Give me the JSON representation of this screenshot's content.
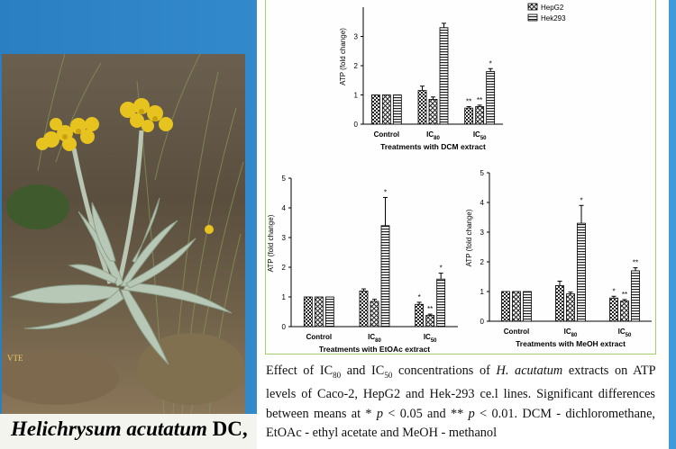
{
  "photo": {
    "credit": "VTE",
    "species": {
      "genus": "Helichrysum",
      "epithet": "acutatum",
      "author": "DC,"
    }
  },
  "chart_data": [
    {
      "type": "bar",
      "id": "dcm",
      "ylabel": "ATP (fold change)",
      "xlabel": "Treatments with DCM extract",
      "ylim": [
        0,
        4
      ],
      "yticks": [
        0,
        1,
        2,
        3
      ],
      "categories": [
        "Control",
        "IC80",
        "IC50"
      ],
      "series": [
        {
          "name": "",
          "values": [
            1.0,
            1.15,
            0.55
          ],
          "errors": [
            0.0,
            0.15,
            0.05
          ]
        },
        {
          "name": "HepG2",
          "values": [
            1.0,
            0.85,
            0.6
          ],
          "errors": [
            0.0,
            0.08,
            0.05
          ]
        },
        {
          "name": "Hek293",
          "values": [
            1.0,
            3.3,
            1.8
          ],
          "errors": [
            0.0,
            0.15,
            0.1
          ]
        }
      ],
      "annotations": [
        {
          "category": 2,
          "series": 0,
          "label": "**"
        },
        {
          "category": 2,
          "series": 1,
          "label": "**"
        },
        {
          "category": 2,
          "series": 2,
          "label": "*"
        }
      ],
      "legend": "top-right"
    },
    {
      "type": "bar",
      "id": "etoac",
      "ylabel": "ATP (fold change)",
      "xlabel": "Treatments with EtOAc extract",
      "ylim": [
        0,
        5
      ],
      "yticks": [
        0,
        1,
        2,
        3,
        4,
        5
      ],
      "categories": [
        "Control",
        "IC80",
        "IC50"
      ],
      "series": [
        {
          "name": "",
          "values": [
            1.0,
            1.2,
            0.75
          ],
          "errors": [
            0.0,
            0.07,
            0.07
          ]
        },
        {
          "name": "HepG2",
          "values": [
            1.0,
            0.85,
            0.38
          ],
          "errors": [
            0.0,
            0.07,
            0.04
          ]
        },
        {
          "name": "Hek293",
          "values": [
            1.0,
            3.4,
            1.6
          ],
          "errors": [
            0.0,
            0.95,
            0.2
          ]
        }
      ],
      "annotations": [
        {
          "category": 1,
          "series": 2,
          "label": "*"
        },
        {
          "category": 2,
          "series": 0,
          "label": "*"
        },
        {
          "category": 2,
          "series": 1,
          "label": "**"
        },
        {
          "category": 2,
          "series": 2,
          "label": "*"
        }
      ]
    },
    {
      "type": "bar",
      "id": "meoh",
      "ylabel": "ATP (fold change)",
      "xlabel": "Treatments with MeOH extract",
      "ylim": [
        0,
        5
      ],
      "yticks": [
        0,
        1,
        2,
        3,
        4,
        5
      ],
      "categories": [
        "Control",
        "IC80",
        "IC50"
      ],
      "series": [
        {
          "name": "",
          "values": [
            1.0,
            1.2,
            0.78
          ],
          "errors": [
            0.0,
            0.15,
            0.06
          ]
        },
        {
          "name": "HepG2",
          "values": [
            1.0,
            0.92,
            0.68
          ],
          "errors": [
            0.0,
            0.06,
            0.05
          ]
        },
        {
          "name": "Hek293",
          "values": [
            1.0,
            3.3,
            1.7
          ],
          "errors": [
            0.0,
            0.6,
            0.1
          ]
        }
      ],
      "annotations": [
        {
          "category": 1,
          "series": 2,
          "label": "*"
        },
        {
          "category": 2,
          "series": 0,
          "label": "*"
        },
        {
          "category": 2,
          "series": 1,
          "label": "**"
        },
        {
          "category": 2,
          "series": 2,
          "label": "**"
        }
      ]
    }
  ],
  "caption": {
    "l1a": "Effect of IC",
    "l1s1": "80",
    "l1b": " and IC",
    "l1s2": "50",
    "l1c": " concentrations of ",
    "l1i": "H. acutatum",
    "l1d": " extracts on ATP",
    "l2": "levels of Caco-2, HepG2 and Hek-293 ce.l lines. Significant",
    "l3a": "differences between means at * ",
    "l3i1": "p",
    "l3b": " < 0.05 and ** ",
    "l3i2": "p",
    "l3c": " < 0.01. DCM -",
    "l4": "dichloromethane, EtOAc - ethyl acetate and MeOH - methanol"
  }
}
